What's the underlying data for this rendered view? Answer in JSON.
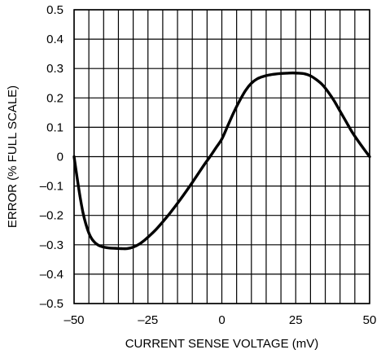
{
  "chart_data": {
    "type": "line",
    "title": "",
    "xlabel": "CURRENT SENSE VOLTAGE (mV)",
    "ylabel": "ERROR (% FULL SCALE)",
    "xlim": [
      -50,
      50
    ],
    "ylim": [
      -0.5,
      0.5
    ],
    "grid": true,
    "legend": "none",
    "x_ticks": [
      {
        "value": -50,
        "label": "–50"
      },
      {
        "value": -25,
        "label": "–25"
      },
      {
        "value": 0,
        "label": "0"
      },
      {
        "value": 25,
        "label": "25"
      },
      {
        "value": 50,
        "label": "50"
      }
    ],
    "y_ticks": [
      {
        "value": 0.5,
        "label": "0.5"
      },
      {
        "value": 0.4,
        "label": "0.4"
      },
      {
        "value": 0.3,
        "label": "0.3"
      },
      {
        "value": 0.2,
        "label": "0.2"
      },
      {
        "value": 0.1,
        "label": "0.1"
      },
      {
        "value": 0,
        "label": "0"
      },
      {
        "value": -0.1,
        "label": "–0.1"
      },
      {
        "value": -0.2,
        "label": "–0.2"
      },
      {
        "value": -0.3,
        "label": "–0.3"
      },
      {
        "value": -0.4,
        "label": "–0.4"
      },
      {
        "value": -0.5,
        "label": "–0.5"
      }
    ],
    "vertical_grid_x": [
      -50,
      -45,
      -40,
      -35,
      -30,
      -25,
      -20,
      -15,
      -10,
      -5,
      0,
      5,
      10,
      15,
      20,
      25,
      30,
      35,
      40,
      45,
      50
    ],
    "series": [
      {
        "color": "#000000",
        "x": [
          -50,
          -49,
          -48,
          -47,
          -46,
          -45,
          -44,
          -43,
          -42,
          -41,
          -40,
          -38,
          -36,
          -34,
          -32,
          -30,
          -28,
          -26,
          -24,
          -22,
          -20,
          -18,
          -16,
          -14,
          -12,
          -10,
          -8,
          -6,
          -4,
          -2,
          0,
          2,
          4,
          6,
          8,
          10,
          12,
          14,
          16,
          18,
          20,
          22,
          24,
          26,
          28,
          30,
          32,
          34,
          36,
          38,
          40,
          42,
          44,
          46,
          48,
          50
        ],
        "y": [
          0.0,
          -0.07,
          -0.135,
          -0.19,
          -0.23,
          -0.26,
          -0.28,
          -0.292,
          -0.3,
          -0.305,
          -0.308,
          -0.311,
          -0.312,
          -0.313,
          -0.313,
          -0.308,
          -0.298,
          -0.283,
          -0.265,
          -0.245,
          -0.222,
          -0.198,
          -0.172,
          -0.145,
          -0.117,
          -0.088,
          -0.058,
          -0.028,
          0.0,
          0.03,
          0.06,
          0.105,
          0.15,
          0.19,
          0.225,
          0.25,
          0.265,
          0.273,
          0.278,
          0.281,
          0.283,
          0.284,
          0.285,
          0.284,
          0.282,
          0.275,
          0.262,
          0.245,
          0.22,
          0.19,
          0.155,
          0.12,
          0.085,
          0.055,
          0.027,
          0.0
        ]
      }
    ]
  }
}
